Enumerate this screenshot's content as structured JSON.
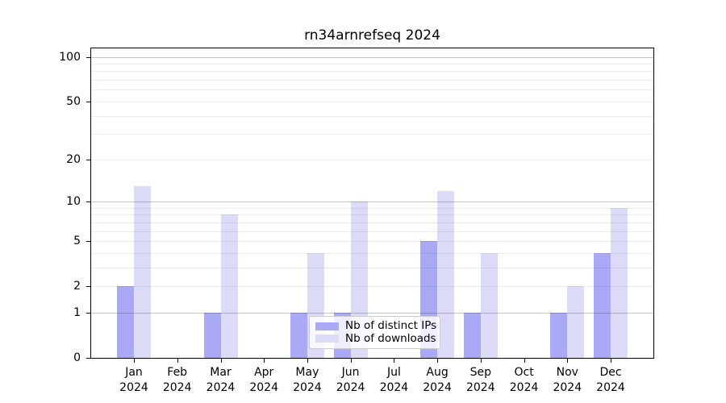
{
  "chart_data": {
    "type": "bar",
    "title": "rn34arnrefseq 2024",
    "categories": [
      "Jan",
      "Feb",
      "Mar",
      "Apr",
      "May",
      "Jun",
      "Jul",
      "Aug",
      "Sep",
      "Oct",
      "Nov",
      "Dec"
    ],
    "year_label": "2024",
    "series": [
      {
        "name": "Nb of distinct IPs",
        "color": "#a9a9f6",
        "values": [
          2,
          0,
          1,
          0,
          1,
          1,
          0,
          5,
          1,
          0,
          1,
          4
        ]
      },
      {
        "name": "Nb of downloads",
        "color": "#dcdcf8",
        "values": [
          13,
          0,
          8,
          0,
          4,
          10,
          0,
          12,
          4,
          0,
          2,
          9
        ]
      }
    ],
    "yscale": "log1p",
    "ylim": [
      0,
      114.1
    ],
    "ytick_labels": [
      "0",
      "1",
      "2",
      "5",
      "10",
      "20",
      "50",
      "100"
    ],
    "ytick_values": [
      0,
      1,
      2,
      5,
      10,
      20,
      50,
      100
    ],
    "major_gridlines": [
      1,
      10,
      100
    ],
    "minor_gridlines": [
      2,
      3,
      4,
      5,
      6,
      7,
      8,
      9,
      20,
      30,
      40,
      50,
      60,
      70,
      80,
      90
    ],
    "grid": "on",
    "legend_position": "lower center",
    "xlabel": "",
    "ylabel": ""
  }
}
